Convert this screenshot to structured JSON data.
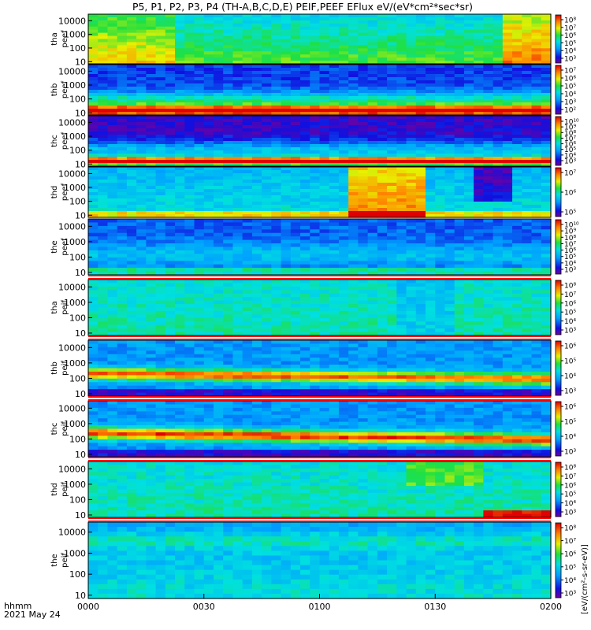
{
  "title": "P5, P1, P2, P3, P4 (TH-A,B,C,D,E) PEIF,PEEF EFlux eV/(eV*cm²*sec*sr)",
  "time_axis": {
    "label_line1": "hhmm",
    "label_line2": "2021 May 24",
    "ticks": [
      "0000",
      "0030",
      "0100",
      "0130",
      "0200"
    ],
    "range_hhmm": [
      "0000",
      "0200"
    ]
  },
  "colorbar_label": "[eV/(cm²-s-sr-eV)]",
  "chart_data": {
    "type": "heatmap",
    "x_unit": "UT hhmm",
    "xlim": [
      "0000",
      "0200"
    ],
    "y_scale": "log",
    "ylim_eV": [
      7,
      30000
    ],
    "y_ticks": [
      "10",
      "100",
      "1000",
      "10000"
    ],
    "panels": [
      {
        "line1": "tha",
        "line2": "peef",
        "cb_ticks": [
          "10⁸",
          "10⁷",
          "10⁶",
          "10⁵",
          "10⁴",
          "10³"
        ]
      },
      {
        "line1": "thb",
        "line2": "peef",
        "cb_ticks": [
          "10⁷",
          "10⁶",
          "10⁵",
          "10⁴",
          "10³",
          "10²"
        ]
      },
      {
        "line1": "thc",
        "line2": "peef",
        "cb_ticks": [
          "10¹⁰",
          "10⁹",
          "10⁸",
          "10⁷",
          "10⁶",
          "10⁵",
          "10⁴",
          "10³"
        ]
      },
      {
        "line1": "thd",
        "line2": "peef",
        "cb_ticks": [
          "10⁷",
          "10⁶",
          "10⁵"
        ]
      },
      {
        "line1": "the",
        "line2": "peef",
        "cb_ticks": [
          "10¹⁰",
          "10⁹",
          "10⁸",
          "10⁷",
          "10⁶",
          "10⁵",
          "10⁴",
          "10³"
        ]
      },
      {
        "line1": "tha",
        "line2": "peif",
        "cb_ticks": [
          "10⁸",
          "10⁷",
          "10⁶",
          "10⁵",
          "10⁴",
          "10³"
        ]
      },
      {
        "line1": "thb",
        "line2": "peif",
        "cb_ticks": [
          "10⁶",
          "10⁵",
          "10⁴",
          "10³"
        ]
      },
      {
        "line1": "thc",
        "line2": "peif",
        "cb_ticks": [
          "10⁶",
          "10⁵",
          "10⁴",
          "10³"
        ]
      },
      {
        "line1": "thd",
        "line2": "peif",
        "cb_ticks": [
          "10⁸",
          "10⁷",
          "10⁶",
          "10⁵",
          "10⁴",
          "10³"
        ]
      },
      {
        "line1": "the",
        "line2": "peif",
        "cb_ticks": [
          "10⁸",
          "10⁷",
          "10⁶",
          "10⁵",
          "10⁴",
          "10³"
        ]
      }
    ]
  }
}
